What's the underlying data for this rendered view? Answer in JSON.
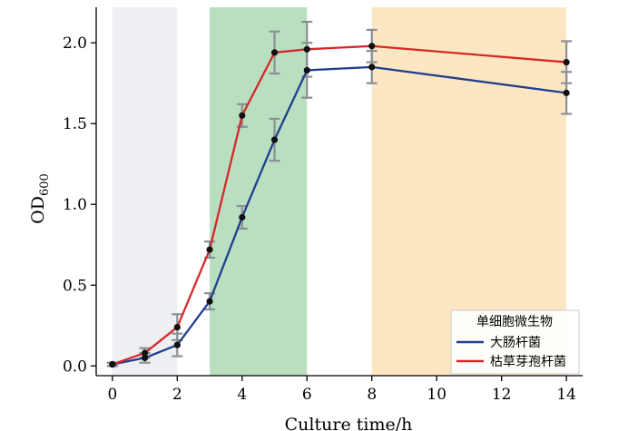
{
  "chart_data": {
    "type": "line",
    "title": "",
    "xlabel": "Culture time/h",
    "ylabel_main": "OD",
    "ylabel_sub": "600",
    "xlim": [
      -0.5,
      14.5
    ],
    "ylim": [
      -0.06,
      2.22
    ],
    "xticks": [
      0,
      2,
      4,
      6,
      8,
      10,
      12,
      14
    ],
    "xtick_labels": [
      "0",
      "2",
      "4",
      "6",
      "8",
      "10",
      "12",
      "14"
    ],
    "yticks": [
      0.0,
      0.5,
      1.0,
      1.5,
      2.0
    ],
    "ytick_labels": [
      "0.0",
      "0.5",
      "1.0",
      "1.5",
      "2.0"
    ],
    "regions": [
      {
        "x0": 0,
        "x1": 2,
        "color": "#eeeff2"
      },
      {
        "x0": 3,
        "x1": 6,
        "color": "#b9dfc0"
      },
      {
        "x0": 8,
        "x1": 14,
        "color": "#fce7c2"
      }
    ],
    "legend": {
      "title": "单细胞微生物",
      "placement": "bottom-right"
    },
    "series": [
      {
        "name": "大肠杆菌",
        "color": "#1f3f8f",
        "x": [
          0,
          1,
          2,
          3,
          4,
          5,
          6,
          8,
          14
        ],
        "y": [
          0.01,
          0.05,
          0.13,
          0.4,
          0.92,
          1.4,
          1.83,
          1.85,
          1.69
        ],
        "err": [
          0.01,
          0.03,
          0.07,
          0.05,
          0.07,
          0.13,
          0.17,
          0.1,
          0.13
        ]
      },
      {
        "name": "枯草芽孢杆菌",
        "color": "#d62828",
        "x": [
          0,
          1,
          2,
          3,
          4,
          5,
          6,
          8,
          14
        ],
        "y": [
          0.01,
          0.08,
          0.24,
          0.72,
          1.55,
          1.94,
          1.96,
          1.98,
          1.88
        ],
        "err": [
          0.01,
          0.03,
          0.08,
          0.05,
          0.07,
          0.13,
          0.17,
          0.1,
          0.13
        ]
      }
    ]
  }
}
